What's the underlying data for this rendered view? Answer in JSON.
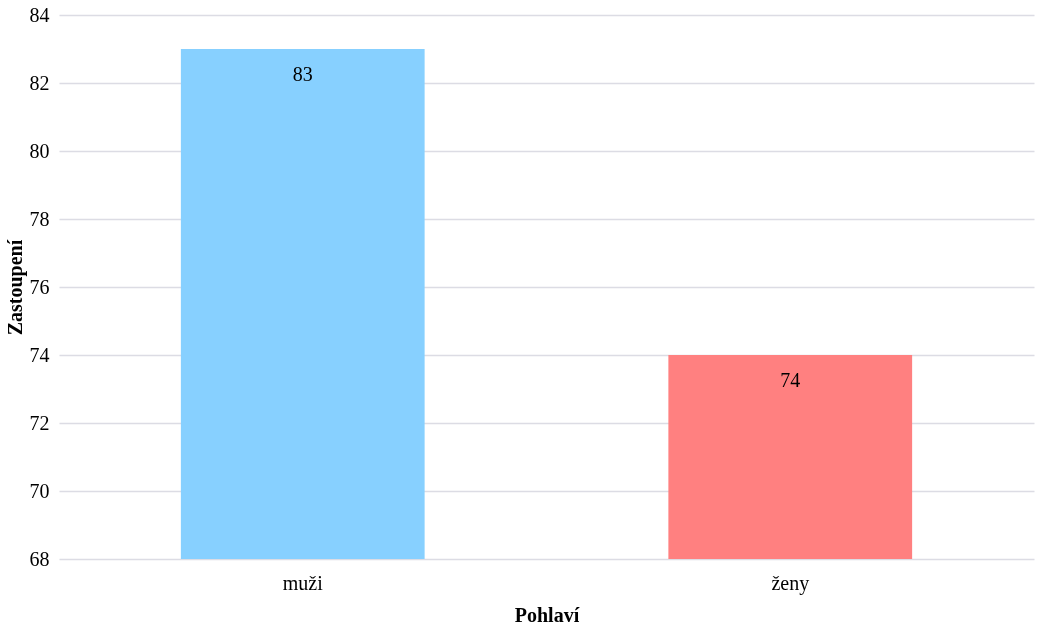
{
  "chart_data": {
    "type": "bar",
    "xlabel": "Pohlaví",
    "ylabel": "Zastoupení",
    "categories": [
      "muži",
      "ženy"
    ],
    "values": [
      83,
      74
    ],
    "colors": [
      "#87d0ff",
      "#ff8080"
    ],
    "ylim": [
      68,
      84
    ],
    "yticks": [
      68,
      70,
      72,
      74,
      76,
      78,
      80,
      82,
      84
    ],
    "grid": "y",
    "data_labels": true
  }
}
